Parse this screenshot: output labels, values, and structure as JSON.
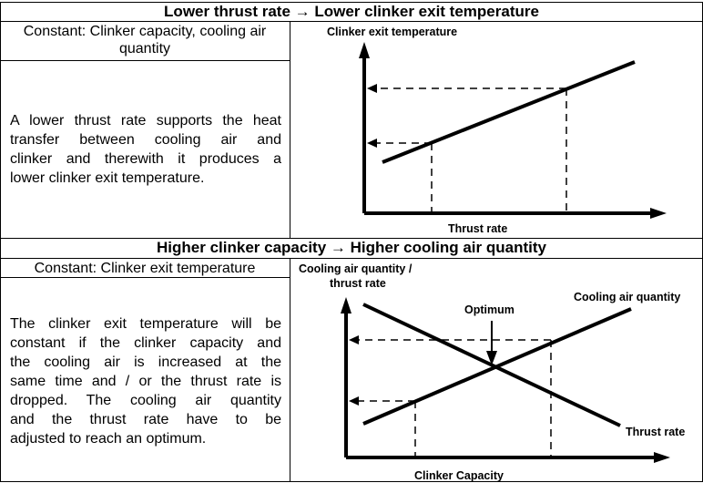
{
  "section1": {
    "title": "Lower thrust rate → Lower clinker exit temperature",
    "constant": "Constant: Clinker capacity, cooling air quantity",
    "description_lines": [
      "A lower thrust rate supports the heat",
      "transfer between cooling air and",
      "clinker and therewith it produces a",
      "lower clinker exit temperature."
    ],
    "diagram": {
      "y_axis_label": "Clinker exit temperature",
      "x_axis_label": "Thrust rate"
    }
  },
  "section2": {
    "title": "Higher clinker capacity → Higher cooling air quantity",
    "constant": "Constant: Clinker exit temperature",
    "description_lines": [
      "The clinker exit temperature will be",
      "constant if the clinker capacity and",
      "the cooling air is increased at the",
      "same time and / or the thrust rate is",
      "dropped. The cooling air quantity",
      "and the thrust rate have to be",
      "adjusted to reach an optimum."
    ],
    "diagram": {
      "y_axis_label_line1": "Cooling air quantity /",
      "y_axis_label_line2": "thrust rate",
      "x_axis_label": "Clinker Capacity",
      "optimum_label": "Optimum",
      "line_label_rising": "Cooling air quantity",
      "line_label_falling": "Thrust rate"
    }
  }
}
